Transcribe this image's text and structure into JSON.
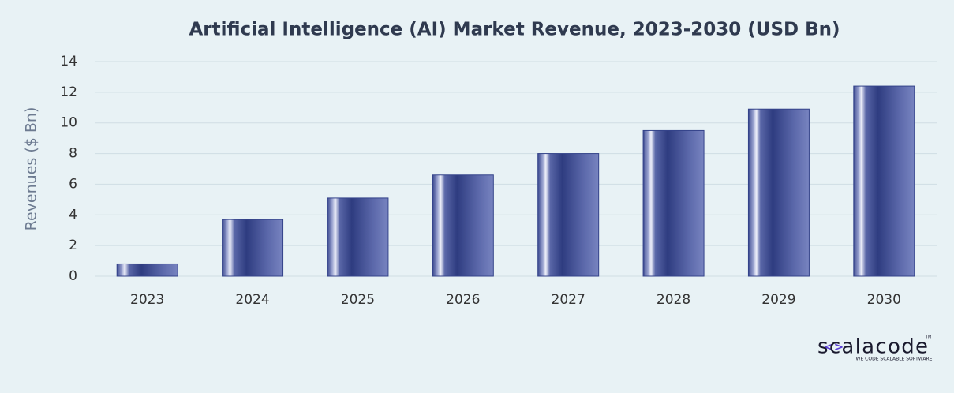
{
  "chart_data": {
    "type": "bar",
    "title": "Artificial Intelligence (AI) Market Revenue, 2023-2030 (USD Bn)",
    "y_label": "Revenues ($ Bn)",
    "categories": [
      "2023",
      "2024",
      "2025",
      "2026",
      "2027",
      "2028",
      "2029",
      "2030"
    ],
    "values": [
      0.8,
      3.7,
      5.1,
      6.6,
      8.0,
      9.5,
      10.9,
      12.4
    ],
    "color": "#34438a",
    "ylim": [
      0,
      14
    ],
    "yticks": [
      0,
      2,
      4,
      6,
      8,
      10,
      12,
      14
    ],
    "grid": true
  },
  "logo": {
    "name": "scalacode",
    "trademark": "TM",
    "tagline": "WE CODE SCALABLE SOFTWARE"
  }
}
